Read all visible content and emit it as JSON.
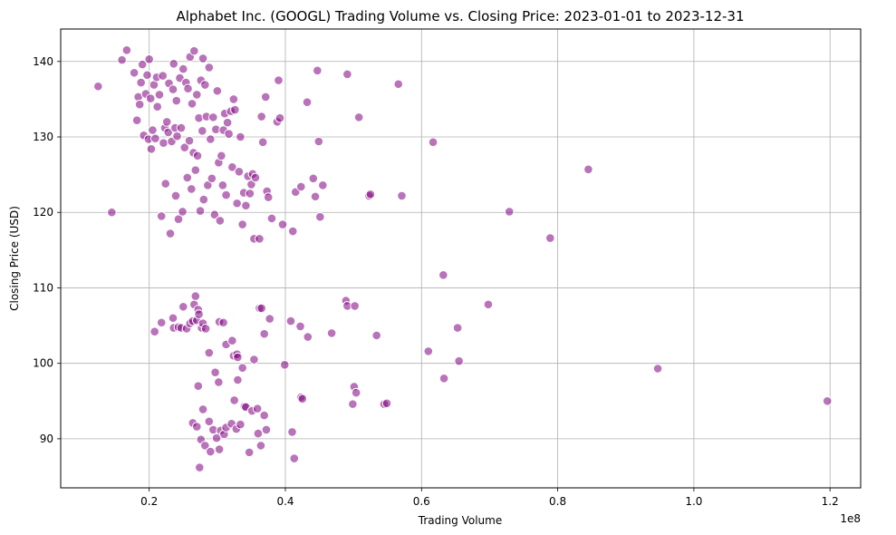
{
  "chart_data": {
    "type": "scatter",
    "title": "Alphabet Inc. (GOOGL) Trading Volume vs. Closing Price: 2023-01-01 to 2023-12-31",
    "xlabel": "Trading Volume",
    "ylabel": "Closing Price (USD)",
    "x_offset_label": "1e8",
    "x_scale_exponent": 8,
    "xlim": [
      0.07,
      1.245
    ],
    "ylim": [
      83.5,
      144.3
    ],
    "x_ticks": [
      0.2,
      0.4,
      0.6,
      0.8,
      1.0,
      1.2
    ],
    "x_tick_labels": [
      "0.2",
      "0.4",
      "0.6",
      "0.8",
      "1.0",
      "1.2"
    ],
    "y_ticks": [
      90,
      100,
      110,
      120,
      130,
      140
    ],
    "y_tick_labels": [
      "90",
      "100",
      "110",
      "120",
      "130",
      "140"
    ],
    "grid": true,
    "marker_color": "#800080",
    "marker_alpha": 0.55,
    "marker_edge_color": "#ffffff",
    "points": [
      {
        "x": 0.125,
        "y": 136.7
      },
      {
        "x": 0.145,
        "y": 120.0
      },
      {
        "x": 0.16,
        "y": 140.2
      },
      {
        "x": 0.167,
        "y": 141.5
      },
      {
        "x": 0.178,
        "y": 138.5
      },
      {
        "x": 0.182,
        "y": 132.2
      },
      {
        "x": 0.184,
        "y": 135.3
      },
      {
        "x": 0.186,
        "y": 134.3
      },
      {
        "x": 0.188,
        "y": 137.2
      },
      {
        "x": 0.19,
        "y": 139.6
      },
      {
        "x": 0.192,
        "y": 130.2
      },
      {
        "x": 0.195,
        "y": 135.7
      },
      {
        "x": 0.197,
        "y": 138.2
      },
      {
        "x": 0.199,
        "y": 129.7
      },
      {
        "x": 0.2,
        "y": 140.3
      },
      {
        "x": 0.202,
        "y": 135.1
      },
      {
        "x": 0.203,
        "y": 128.4
      },
      {
        "x": 0.205,
        "y": 130.9
      },
      {
        "x": 0.207,
        "y": 136.9
      },
      {
        "x": 0.209,
        "y": 129.8
      },
      {
        "x": 0.211,
        "y": 137.9
      },
      {
        "x": 0.212,
        "y": 134.0
      },
      {
        "x": 0.215,
        "y": 135.6
      },
      {
        "x": 0.218,
        "y": 119.5
      },
      {
        "x": 0.22,
        "y": 138.1
      },
      {
        "x": 0.221,
        "y": 129.2
      },
      {
        "x": 0.223,
        "y": 131.2
      },
      {
        "x": 0.224,
        "y": 123.8
      },
      {
        "x": 0.226,
        "y": 132.0
      },
      {
        "x": 0.228,
        "y": 130.6
      },
      {
        "x": 0.229,
        "y": 137.1
      },
      {
        "x": 0.231,
        "y": 117.2
      },
      {
        "x": 0.233,
        "y": 129.4
      },
      {
        "x": 0.235,
        "y": 136.3
      },
      {
        "x": 0.236,
        "y": 139.7
      },
      {
        "x": 0.238,
        "y": 131.2
      },
      {
        "x": 0.239,
        "y": 122.2
      },
      {
        "x": 0.24,
        "y": 134.8
      },
      {
        "x": 0.241,
        "y": 130.1
      },
      {
        "x": 0.243,
        "y": 119.1
      },
      {
        "x": 0.245,
        "y": 137.8
      },
      {
        "x": 0.247,
        "y": 131.2
      },
      {
        "x": 0.249,
        "y": 120.1
      },
      {
        "x": 0.25,
        "y": 139.0
      },
      {
        "x": 0.252,
        "y": 128.6
      },
      {
        "x": 0.254,
        "y": 137.2
      },
      {
        "x": 0.256,
        "y": 124.6
      },
      {
        "x": 0.257,
        "y": 136.4
      },
      {
        "x": 0.259,
        "y": 129.5
      },
      {
        "x": 0.26,
        "y": 140.6
      },
      {
        "x": 0.262,
        "y": 123.1
      },
      {
        "x": 0.263,
        "y": 134.4
      },
      {
        "x": 0.265,
        "y": 127.9
      },
      {
        "x": 0.266,
        "y": 141.4
      },
      {
        "x": 0.268,
        "y": 125.6
      },
      {
        "x": 0.27,
        "y": 135.6
      },
      {
        "x": 0.271,
        "y": 127.5
      },
      {
        "x": 0.273,
        "y": 132.5
      },
      {
        "x": 0.275,
        "y": 120.2
      },
      {
        "x": 0.276,
        "y": 137.5
      },
      {
        "x": 0.278,
        "y": 130.8
      },
      {
        "x": 0.279,
        "y": 140.4
      },
      {
        "x": 0.28,
        "y": 121.7
      },
      {
        "x": 0.282,
        "y": 136.9
      },
      {
        "x": 0.284,
        "y": 132.7
      },
      {
        "x": 0.286,
        "y": 123.6
      },
      {
        "x": 0.288,
        "y": 139.2
      },
      {
        "x": 0.29,
        "y": 129.7
      },
      {
        "x": 0.292,
        "y": 124.5
      },
      {
        "x": 0.294,
        "y": 132.6
      },
      {
        "x": 0.296,
        "y": 119.7
      },
      {
        "x": 0.298,
        "y": 131.0
      },
      {
        "x": 0.3,
        "y": 136.1
      },
      {
        "x": 0.302,
        "y": 126.6
      },
      {
        "x": 0.304,
        "y": 118.9
      },
      {
        "x": 0.306,
        "y": 127.5
      },
      {
        "x": 0.308,
        "y": 123.6
      },
      {
        "x": 0.309,
        "y": 130.9
      },
      {
        "x": 0.311,
        "y": 133.1
      },
      {
        "x": 0.313,
        "y": 122.3
      },
      {
        "x": 0.315,
        "y": 131.9
      },
      {
        "x": 0.317,
        "y": 130.4
      },
      {
        "x": 0.32,
        "y": 133.4
      },
      {
        "x": 0.322,
        "y": 126.0
      },
      {
        "x": 0.324,
        "y": 135.0
      },
      {
        "x": 0.326,
        "y": 133.6
      },
      {
        "x": 0.329,
        "y": 121.2
      },
      {
        "x": 0.332,
        "y": 125.4
      },
      {
        "x": 0.334,
        "y": 130.0
      },
      {
        "x": 0.337,
        "y": 118.4
      },
      {
        "x": 0.339,
        "y": 122.6
      },
      {
        "x": 0.342,
        "y": 120.9
      },
      {
        "x": 0.345,
        "y": 124.8
      },
      {
        "x": 0.348,
        "y": 122.5
      },
      {
        "x": 0.35,
        "y": 123.7
      },
      {
        "x": 0.352,
        "y": 125.1
      },
      {
        "x": 0.354,
        "y": 116.5
      },
      {
        "x": 0.356,
        "y": 124.6
      },
      {
        "x": 0.362,
        "y": 116.5
      },
      {
        "x": 0.365,
        "y": 132.7
      },
      {
        "x": 0.367,
        "y": 129.3
      },
      {
        "x": 0.371,
        "y": 135.3
      },
      {
        "x": 0.373,
        "y": 122.8
      },
      {
        "x": 0.375,
        "y": 122.0
      },
      {
        "x": 0.38,
        "y": 119.2
      },
      {
        "x": 0.388,
        "y": 132.0
      },
      {
        "x": 0.39,
        "y": 137.5
      },
      {
        "x": 0.392,
        "y": 132.5
      },
      {
        "x": 0.396,
        "y": 118.4
      },
      {
        "x": 0.411,
        "y": 117.5
      },
      {
        "x": 0.415,
        "y": 122.7
      },
      {
        "x": 0.423,
        "y": 123.4
      },
      {
        "x": 0.432,
        "y": 134.6
      },
      {
        "x": 0.441,
        "y": 124.5
      },
      {
        "x": 0.444,
        "y": 122.1
      },
      {
        "x": 0.447,
        "y": 138.8
      },
      {
        "x": 0.449,
        "y": 129.4
      },
      {
        "x": 0.451,
        "y": 119.4
      },
      {
        "x": 0.455,
        "y": 123.6
      },
      {
        "x": 0.491,
        "y": 138.3
      },
      {
        "x": 0.508,
        "y": 132.6
      },
      {
        "x": 0.523,
        "y": 122.2
      },
      {
        "x": 0.525,
        "y": 122.4
      },
      {
        "x": 0.566,
        "y": 137.0
      },
      {
        "x": 0.571,
        "y": 122.2
      },
      {
        "x": 0.617,
        "y": 129.3
      },
      {
        "x": 0.729,
        "y": 120.1
      },
      {
        "x": 0.789,
        "y": 116.6
      },
      {
        "x": 0.845,
        "y": 125.7
      },
      {
        "x": 0.208,
        "y": 104.2
      },
      {
        "x": 0.218,
        "y": 105.4
      },
      {
        "x": 0.235,
        "y": 106.0
      },
      {
        "x": 0.236,
        "y": 104.7
      },
      {
        "x": 0.243,
        "y": 104.8
      },
      {
        "x": 0.247,
        "y": 104.7
      },
      {
        "x": 0.25,
        "y": 107.5
      },
      {
        "x": 0.255,
        "y": 104.6
      },
      {
        "x": 0.26,
        "y": 105.3
      },
      {
        "x": 0.264,
        "y": 105.6
      },
      {
        "x": 0.266,
        "y": 107.8
      },
      {
        "x": 0.268,
        "y": 108.9
      },
      {
        "x": 0.27,
        "y": 105.7
      },
      {
        "x": 0.272,
        "y": 107.1
      },
      {
        "x": 0.273,
        "y": 106.5
      },
      {
        "x": 0.277,
        "y": 104.7
      },
      {
        "x": 0.279,
        "y": 105.3
      },
      {
        "x": 0.283,
        "y": 104.6
      },
      {
        "x": 0.288,
        "y": 101.4
      },
      {
        "x": 0.303,
        "y": 105.5
      },
      {
        "x": 0.309,
        "y": 105.4
      },
      {
        "x": 0.313,
        "y": 102.5
      },
      {
        "x": 0.322,
        "y": 103.0
      },
      {
        "x": 0.324,
        "y": 101.0
      },
      {
        "x": 0.329,
        "y": 101.2
      },
      {
        "x": 0.33,
        "y": 100.8
      },
      {
        "x": 0.362,
        "y": 107.3
      },
      {
        "x": 0.365,
        "y": 107.3
      },
      {
        "x": 0.369,
        "y": 103.9
      },
      {
        "x": 0.377,
        "y": 105.9
      },
      {
        "x": 0.399,
        "y": 99.8
      },
      {
        "x": 0.408,
        "y": 105.6
      },
      {
        "x": 0.422,
        "y": 104.9
      },
      {
        "x": 0.433,
        "y": 103.5
      },
      {
        "x": 0.468,
        "y": 104.0
      },
      {
        "x": 0.489,
        "y": 108.3
      },
      {
        "x": 0.491,
        "y": 107.6
      },
      {
        "x": 0.502,
        "y": 107.6
      },
      {
        "x": 0.534,
        "y": 103.7
      },
      {
        "x": 0.61,
        "y": 101.6
      },
      {
        "x": 0.632,
        "y": 111.7
      },
      {
        "x": 0.653,
        "y": 104.7
      },
      {
        "x": 0.655,
        "y": 100.3
      },
      {
        "x": 0.698,
        "y": 107.8
      },
      {
        "x": 0.947,
        "y": 99.3
      },
      {
        "x": 0.264,
        "y": 92.1
      },
      {
        "x": 0.27,
        "y": 91.6
      },
      {
        "x": 0.272,
        "y": 97.0
      },
      {
        "x": 0.274,
        "y": 86.2
      },
      {
        "x": 0.276,
        "y": 89.9
      },
      {
        "x": 0.279,
        "y": 93.9
      },
      {
        "x": 0.282,
        "y": 89.1
      },
      {
        "x": 0.288,
        "y": 92.3
      },
      {
        "x": 0.29,
        "y": 88.3
      },
      {
        "x": 0.294,
        "y": 91.2
      },
      {
        "x": 0.297,
        "y": 98.8
      },
      {
        "x": 0.299,
        "y": 90.1
      },
      {
        "x": 0.302,
        "y": 97.5
      },
      {
        "x": 0.303,
        "y": 88.6
      },
      {
        "x": 0.305,
        "y": 91.1
      },
      {
        "x": 0.31,
        "y": 90.6
      },
      {
        "x": 0.313,
        "y": 91.5
      },
      {
        "x": 0.321,
        "y": 92.0
      },
      {
        "x": 0.325,
        "y": 95.1
      },
      {
        "x": 0.328,
        "y": 91.3
      },
      {
        "x": 0.33,
        "y": 97.8
      },
      {
        "x": 0.334,
        "y": 91.9
      },
      {
        "x": 0.337,
        "y": 99.4
      },
      {
        "x": 0.34,
        "y": 94.3
      },
      {
        "x": 0.342,
        "y": 94.2
      },
      {
        "x": 0.347,
        "y": 88.2
      },
      {
        "x": 0.351,
        "y": 93.7
      },
      {
        "x": 0.354,
        "y": 100.5
      },
      {
        "x": 0.359,
        "y": 94.0
      },
      {
        "x": 0.36,
        "y": 90.7
      },
      {
        "x": 0.364,
        "y": 89.1
      },
      {
        "x": 0.369,
        "y": 93.1
      },
      {
        "x": 0.372,
        "y": 91.2
      },
      {
        "x": 0.41,
        "y": 90.9
      },
      {
        "x": 0.413,
        "y": 87.4
      },
      {
        "x": 0.423,
        "y": 95.5
      },
      {
        "x": 0.425,
        "y": 95.3
      },
      {
        "x": 0.499,
        "y": 94.6
      },
      {
        "x": 0.501,
        "y": 96.9
      },
      {
        "x": 0.504,
        "y": 96.1
      },
      {
        "x": 0.545,
        "y": 94.6
      },
      {
        "x": 0.549,
        "y": 94.7
      },
      {
        "x": 0.633,
        "y": 98.0
      },
      {
        "x": 1.196,
        "y": 95.0
      }
    ]
  }
}
